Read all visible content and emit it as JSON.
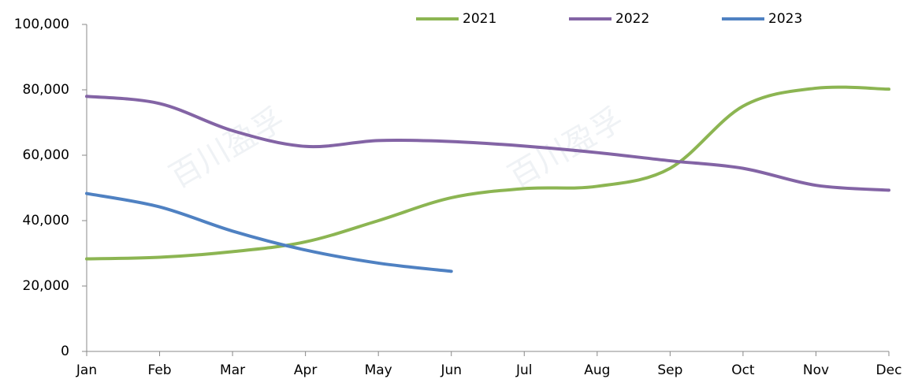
{
  "chart_data": {
    "type": "line",
    "categories": [
      "Jan",
      "Feb",
      "Mar",
      "Apr",
      "May",
      "Jun",
      "Jul",
      "Aug",
      "Sep",
      "Oct",
      "Nov",
      "Dec"
    ],
    "series": [
      {
        "name": "2021",
        "color": "#8cb552",
        "values": [
          28300,
          28800,
          30500,
          33500,
          40000,
          47000,
          49800,
          50500,
          56000,
          75000,
          80500,
          80200
        ]
      },
      {
        "name": "2022",
        "color": "#8364a5",
        "values": [
          78000,
          75800,
          67500,
          62700,
          64500,
          64200,
          62800,
          60800,
          58300,
          56000,
          50800,
          49300
        ]
      },
      {
        "name": "2023",
        "color": "#4f81c2",
        "values": [
          48300,
          44200,
          36800,
          31000,
          27000,
          24500,
          null,
          null,
          null,
          null,
          null,
          null
        ]
      }
    ],
    "ylim": [
      0,
      100000
    ],
    "yticks": [
      0,
      {
        "value": 20000,
        "label": "20,000"
      },
      {
        "value": 40000,
        "label": "40,000"
      },
      {
        "value": 60000,
        "label": "60,000"
      },
      {
        "value": 80000,
        "label": "80,000"
      },
      {
        "value": 100000,
        "label": "100,000"
      }
    ],
    "legend": "top",
    "smooth": true
  }
}
